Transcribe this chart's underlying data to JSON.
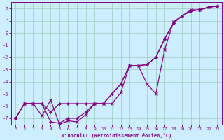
{
  "xlabel": "Windchill (Refroidissement éolien,°C)",
  "bg_color": "#cceeff",
  "grid_color": "#99ccbb",
  "line_color": "#880088",
  "xlim": [
    -0.5,
    23.5
  ],
  "ylim": [
    -7.5,
    2.5
  ],
  "xticks": [
    0,
    1,
    2,
    3,
    4,
    5,
    6,
    7,
    8,
    9,
    10,
    11,
    12,
    13,
    14,
    15,
    16,
    17,
    18,
    19,
    20,
    21,
    22,
    23
  ],
  "yticks": [
    -7,
    -6,
    -5,
    -4,
    -3,
    -2,
    -1,
    0,
    1,
    2
  ],
  "line1_x": [
    0,
    1,
    2,
    3,
    4,
    5,
    6,
    7,
    8,
    9,
    10,
    11,
    12,
    13,
    14,
    15,
    16,
    17,
    18,
    19,
    20,
    21,
    22,
    23
  ],
  "line1_y": [
    -7.0,
    -5.8,
    -5.8,
    -5.8,
    -6.5,
    -5.8,
    -5.8,
    -5.8,
    -5.8,
    -5.8,
    -5.8,
    -5.0,
    -4.2,
    -2.7,
    -2.7,
    -2.6,
    -2.0,
    -0.5,
    0.8,
    1.4,
    1.8,
    1.9,
    2.1,
    2.2
  ],
  "line2_x": [
    0,
    1,
    2,
    3,
    4,
    5,
    6,
    7,
    8,
    9,
    10,
    11,
    12,
    13,
    14,
    15,
    16,
    17,
    18,
    19,
    20,
    21,
    22,
    23
  ],
  "line2_y": [
    -7.0,
    -5.8,
    -5.8,
    -6.8,
    -5.5,
    -7.5,
    -7.2,
    -7.3,
    -6.7,
    -5.8,
    -5.8,
    -5.8,
    -4.9,
    -2.7,
    -2.7,
    -4.2,
    -5.0,
    -1.4,
    0.9,
    1.4,
    1.9,
    1.9,
    2.1,
    2.2
  ],
  "line3_x": [
    0,
    1,
    2,
    3,
    4,
    5,
    6,
    7,
    8,
    9,
    10,
    11,
    12,
    13,
    14,
    15,
    16,
    17,
    18,
    19,
    20,
    21,
    22,
    23
  ],
  "line3_y": [
    -7.0,
    -5.8,
    -5.8,
    -5.8,
    -7.3,
    -7.4,
    -7.0,
    -7.0,
    -6.5,
    -5.8,
    -5.8,
    -5.0,
    -4.2,
    -2.7,
    -2.7,
    -2.6,
    -2.0,
    -0.5,
    0.8,
    1.4,
    1.8,
    1.9,
    2.1,
    2.2
  ]
}
